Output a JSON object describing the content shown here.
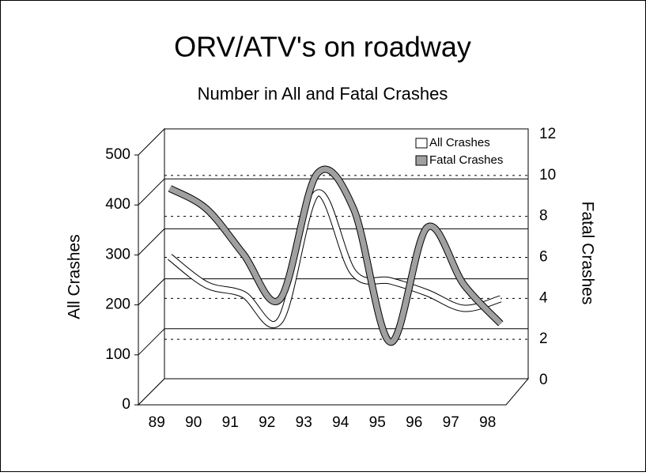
{
  "chart_data": {
    "type": "line",
    "title": "ORV/ATV's on roadway",
    "subtitle": "Number in All and Fatal Crashes",
    "ylabel": "All Crashes",
    "y2label": "Fatal Crashes",
    "categories": [
      "89",
      "90",
      "91",
      "92",
      "93",
      "94",
      "95",
      "96",
      "97",
      "98"
    ],
    "series": [
      {
        "name": "All Crashes",
        "color": "#ffffff",
        "axis": "y",
        "values": [
          270,
          214,
          195,
          143,
          397,
          238,
          222,
          198,
          167,
          186
        ]
      },
      {
        "name": "Fatal Crashes",
        "color": "#a0a0a0",
        "axis": "y2",
        "values": [
          10.0,
          9.0,
          6.8,
          4.6,
          10.7,
          9.0,
          2.5,
          8.1,
          5.3,
          3.4
        ]
      }
    ],
    "ylim": [
      0,
      500
    ],
    "yticks": [
      0,
      100,
      200,
      300,
      400,
      500
    ],
    "y2lim": [
      0,
      12
    ],
    "y2ticks": [
      0,
      2,
      4,
      6,
      8,
      10,
      12
    ],
    "legend": "upper right",
    "grid": true
  }
}
